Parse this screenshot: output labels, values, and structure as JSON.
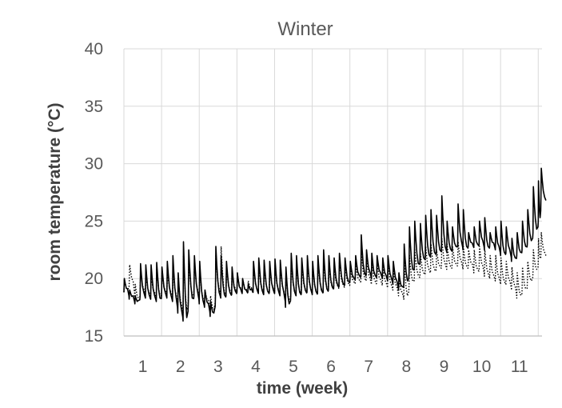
{
  "chart_data": {
    "type": "line",
    "title": "Winter",
    "xlabel": "time (week)",
    "ylabel": "room temperature (°C)",
    "xlim": [
      0.5,
      11.6
    ],
    "ylim": [
      15,
      40
    ],
    "yticks": [
      15,
      20,
      25,
      30,
      35,
      40
    ],
    "xticks": [
      1,
      2,
      3,
      4,
      5,
      6,
      7,
      8,
      9,
      10,
      11
    ],
    "grid": true,
    "legend": "none",
    "series": [
      {
        "style": "solid",
        "color": "#000000",
        "daily_peaks": [
          [
            0.5,
            20.0
          ],
          [
            0.64,
            19.0
          ],
          [
            0.79,
            18.5
          ],
          [
            0.93,
            21.3
          ],
          [
            1.07,
            21.2
          ],
          [
            1.21,
            21.2
          ],
          [
            1.36,
            21.4
          ],
          [
            1.5,
            21.0
          ],
          [
            1.64,
            21.5
          ],
          [
            1.79,
            22.0
          ],
          [
            1.93,
            20.5
          ],
          [
            2.07,
            23.2
          ],
          [
            2.21,
            22.5
          ],
          [
            2.36,
            22.0
          ],
          [
            2.5,
            21.5
          ],
          [
            2.64,
            19.0
          ],
          [
            2.79,
            18.0
          ],
          [
            2.93,
            22.8
          ],
          [
            3.07,
            22.0
          ],
          [
            3.21,
            21.5
          ],
          [
            3.36,
            21.0
          ],
          [
            3.5,
            20.5
          ],
          [
            3.64,
            20.0
          ],
          [
            3.79,
            19.5
          ],
          [
            3.93,
            21.5
          ],
          [
            4.07,
            21.8
          ],
          [
            4.21,
            21.6
          ],
          [
            4.36,
            21.5
          ],
          [
            4.5,
            21.7
          ],
          [
            4.64,
            21.6
          ],
          [
            4.79,
            21.0
          ],
          [
            4.93,
            22.2
          ],
          [
            5.07,
            22.0
          ],
          [
            5.21,
            21.8
          ],
          [
            5.36,
            22.0
          ],
          [
            5.5,
            21.5
          ],
          [
            5.64,
            22.0
          ],
          [
            5.79,
            22.5
          ],
          [
            5.93,
            22.0
          ],
          [
            6.07,
            21.8
          ],
          [
            6.21,
            22.2
          ],
          [
            6.36,
            21.8
          ],
          [
            6.5,
            21.5
          ],
          [
            6.64,
            22.0
          ],
          [
            6.79,
            23.8
          ],
          [
            6.93,
            22.5
          ],
          [
            7.07,
            22.2
          ],
          [
            7.21,
            22.0
          ],
          [
            7.36,
            21.8
          ],
          [
            7.5,
            22.0
          ],
          [
            7.64,
            21.5
          ],
          [
            7.79,
            20.5
          ],
          [
            7.93,
            23.0
          ],
          [
            8.07,
            24.5
          ],
          [
            8.21,
            25.0
          ],
          [
            8.36,
            24.8
          ],
          [
            8.5,
            25.5
          ],
          [
            8.64,
            26.0
          ],
          [
            8.79,
            25.5
          ],
          [
            8.93,
            27.2
          ],
          [
            9.07,
            25.0
          ],
          [
            9.21,
            24.5
          ],
          [
            9.36,
            26.5
          ],
          [
            9.5,
            26.0
          ],
          [
            9.64,
            24.0
          ],
          [
            9.79,
            24.5
          ],
          [
            9.93,
            25.0
          ],
          [
            10.07,
            25.3
          ],
          [
            10.21,
            24.0
          ],
          [
            10.36,
            24.5
          ],
          [
            10.5,
            25.0
          ],
          [
            10.64,
            24.5
          ],
          [
            10.79,
            23.5
          ],
          [
            10.93,
            24.0
          ],
          [
            11.07,
            25.0
          ],
          [
            11.21,
            26.0
          ],
          [
            11.36,
            28.0
          ],
          [
            11.5,
            28.5
          ],
          [
            11.57,
            29.6
          ]
        ],
        "daily_troughs": [
          [
            0.5,
            18.8
          ],
          [
            0.64,
            18.2
          ],
          [
            0.79,
            17.8
          ],
          [
            0.93,
            18.5
          ],
          [
            1.07,
            18.3
          ],
          [
            1.21,
            18.2
          ],
          [
            1.36,
            18.0
          ],
          [
            1.5,
            18.5
          ],
          [
            1.64,
            18.3
          ],
          [
            1.79,
            18.0
          ],
          [
            1.93,
            17.0
          ],
          [
            2.07,
            16.3
          ],
          [
            2.21,
            18.0
          ],
          [
            2.36,
            18.5
          ],
          [
            2.5,
            17.8
          ],
          [
            2.64,
            17.5
          ],
          [
            2.79,
            16.7
          ],
          [
            2.93,
            18.5
          ],
          [
            3.07,
            18.3
          ],
          [
            3.21,
            18.5
          ],
          [
            3.36,
            18.6
          ],
          [
            3.5,
            18.8
          ],
          [
            3.64,
            18.7
          ],
          [
            3.79,
            18.8
          ],
          [
            3.93,
            18.8
          ],
          [
            4.07,
            18.7
          ],
          [
            4.21,
            18.6
          ],
          [
            4.36,
            18.8
          ],
          [
            4.5,
            18.7
          ],
          [
            4.64,
            18.5
          ],
          [
            4.79,
            17.5
          ],
          [
            4.93,
            18.6
          ],
          [
            5.07,
            18.5
          ],
          [
            5.21,
            18.7
          ],
          [
            5.36,
            18.8
          ],
          [
            5.5,
            18.6
          ],
          [
            5.64,
            18.7
          ],
          [
            5.79,
            18.8
          ],
          [
            5.93,
            19.0
          ],
          [
            6.07,
            19.2
          ],
          [
            6.21,
            19.3
          ],
          [
            6.36,
            19.5
          ],
          [
            6.5,
            19.8
          ],
          [
            6.64,
            20.0
          ],
          [
            6.79,
            20.2
          ],
          [
            6.93,
            20.3
          ],
          [
            7.07,
            20.0
          ],
          [
            7.21,
            20.2
          ],
          [
            7.36,
            20.0
          ],
          [
            7.5,
            19.8
          ],
          [
            7.64,
            19.5
          ],
          [
            7.79,
            19.0
          ],
          [
            7.93,
            19.5
          ],
          [
            8.07,
            20.5
          ],
          [
            8.21,
            21.0
          ],
          [
            8.36,
            21.5
          ],
          [
            8.5,
            21.8
          ],
          [
            8.64,
            22.0
          ],
          [
            8.79,
            22.2
          ],
          [
            8.93,
            22.5
          ],
          [
            9.07,
            22.3
          ],
          [
            9.21,
            22.5
          ],
          [
            9.36,
            23.0
          ],
          [
            9.5,
            22.5
          ],
          [
            9.64,
            22.8
          ],
          [
            9.79,
            22.7
          ],
          [
            9.93,
            23.0
          ],
          [
            10.07,
            22.5
          ],
          [
            10.21,
            22.8
          ],
          [
            10.36,
            22.5
          ],
          [
            10.5,
            22.0
          ],
          [
            10.64,
            22.2
          ],
          [
            10.79,
            21.5
          ],
          [
            10.93,
            22.0
          ],
          [
            11.07,
            22.5
          ],
          [
            11.21,
            23.0
          ],
          [
            11.36,
            24.0
          ],
          [
            11.5,
            25.0
          ],
          [
            11.57,
            26.8
          ]
        ]
      },
      {
        "style": "dotted",
        "color": "#000000",
        "daily_peaks": [
          [
            0.5,
            20.0
          ],
          [
            0.64,
            21.2
          ],
          [
            0.79,
            19.5
          ],
          [
            0.93,
            20.8
          ],
          [
            1.07,
            20.5
          ],
          [
            1.21,
            20.3
          ],
          [
            1.36,
            20.8
          ],
          [
            1.5,
            20.5
          ],
          [
            1.64,
            20.8
          ],
          [
            1.79,
            21.0
          ],
          [
            1.93,
            20.0
          ],
          [
            2.07,
            22.0
          ],
          [
            2.21,
            21.5
          ],
          [
            2.36,
            21.5
          ],
          [
            2.5,
            21.0
          ],
          [
            2.64,
            19.0
          ],
          [
            2.79,
            18.5
          ],
          [
            2.93,
            22.0
          ],
          [
            3.07,
            22.8
          ],
          [
            3.21,
            21.0
          ],
          [
            3.36,
            20.8
          ],
          [
            3.5,
            20.5
          ],
          [
            3.64,
            20.0
          ],
          [
            3.79,
            19.8
          ],
          [
            3.93,
            21.0
          ],
          [
            4.07,
            21.2
          ],
          [
            4.21,
            21.0
          ],
          [
            4.36,
            21.0
          ],
          [
            4.5,
            21.2
          ],
          [
            4.64,
            21.0
          ],
          [
            4.79,
            20.5
          ],
          [
            4.93,
            21.5
          ],
          [
            5.07,
            21.2
          ],
          [
            5.21,
            21.0
          ],
          [
            5.36,
            21.2
          ],
          [
            5.5,
            21.0
          ],
          [
            5.64,
            21.3
          ],
          [
            5.79,
            21.5
          ],
          [
            5.93,
            21.3
          ],
          [
            6.07,
            21.2
          ],
          [
            6.21,
            21.5
          ],
          [
            6.36,
            21.2
          ],
          [
            6.5,
            21.0
          ],
          [
            6.64,
            21.3
          ],
          [
            6.79,
            22.5
          ],
          [
            6.93,
            21.8
          ],
          [
            7.07,
            21.5
          ],
          [
            7.21,
            21.3
          ],
          [
            7.36,
            21.0
          ],
          [
            7.5,
            21.2
          ],
          [
            7.64,
            20.8
          ],
          [
            7.79,
            20.0
          ],
          [
            7.93,
            21.5
          ],
          [
            8.07,
            22.0
          ],
          [
            8.21,
            22.5
          ],
          [
            8.36,
            22.2
          ],
          [
            8.5,
            22.8
          ],
          [
            8.64,
            23.0
          ],
          [
            8.79,
            22.5
          ],
          [
            8.93,
            23.5
          ],
          [
            9.07,
            23.0
          ],
          [
            9.21,
            22.8
          ],
          [
            9.36,
            23.2
          ],
          [
            9.5,
            22.8
          ],
          [
            9.64,
            22.5
          ],
          [
            9.79,
            22.5
          ],
          [
            9.93,
            22.8
          ],
          [
            10.07,
            22.5
          ],
          [
            10.21,
            22.0
          ],
          [
            10.36,
            22.0
          ],
          [
            10.5,
            21.8
          ],
          [
            10.64,
            21.5
          ],
          [
            10.79,
            21.0
          ],
          [
            10.93,
            20.5
          ],
          [
            11.07,
            21.0
          ],
          [
            11.21,
            21.5
          ],
          [
            11.36,
            22.5
          ],
          [
            11.5,
            23.5
          ],
          [
            11.57,
            24.0
          ]
        ],
        "daily_troughs": [
          [
            0.5,
            18.8
          ],
          [
            0.64,
            19.5
          ],
          [
            0.79,
            18.0
          ],
          [
            0.93,
            18.8
          ],
          [
            1.07,
            18.5
          ],
          [
            1.21,
            18.5
          ],
          [
            1.36,
            18.3
          ],
          [
            1.5,
            18.7
          ],
          [
            1.64,
            18.5
          ],
          [
            1.79,
            18.3
          ],
          [
            1.93,
            17.5
          ],
          [
            2.07,
            17.0
          ],
          [
            2.21,
            18.3
          ],
          [
            2.36,
            18.7
          ],
          [
            2.5,
            18.0
          ],
          [
            2.64,
            17.8
          ],
          [
            2.79,
            17.0
          ],
          [
            2.93,
            18.8
          ],
          [
            3.07,
            18.5
          ],
          [
            3.21,
            18.7
          ],
          [
            3.36,
            18.8
          ],
          [
            3.5,
            18.9
          ],
          [
            3.64,
            18.8
          ],
          [
            3.79,
            18.9
          ],
          [
            3.93,
            18.9
          ],
          [
            4.07,
            18.8
          ],
          [
            4.21,
            18.7
          ],
          [
            4.36,
            18.9
          ],
          [
            4.5,
            18.8
          ],
          [
            4.64,
            18.6
          ],
          [
            4.79,
            17.8
          ],
          [
            4.93,
            18.7
          ],
          [
            5.07,
            18.6
          ],
          [
            5.21,
            18.8
          ],
          [
            5.36,
            18.9
          ],
          [
            5.5,
            18.7
          ],
          [
            5.64,
            18.8
          ],
          [
            5.79,
            18.9
          ],
          [
            5.93,
            19.0
          ],
          [
            6.07,
            19.1
          ],
          [
            6.21,
            19.2
          ],
          [
            6.36,
            19.3
          ],
          [
            6.5,
            19.5
          ],
          [
            6.64,
            19.6
          ],
          [
            6.79,
            19.8
          ],
          [
            6.93,
            19.8
          ],
          [
            7.07,
            19.5
          ],
          [
            7.21,
            19.6
          ],
          [
            7.36,
            19.4
          ],
          [
            7.5,
            19.2
          ],
          [
            7.64,
            19.0
          ],
          [
            7.79,
            18.5
          ],
          [
            7.93,
            18.2
          ],
          [
            8.07,
            19.5
          ],
          [
            8.21,
            20.0
          ],
          [
            8.36,
            20.2
          ],
          [
            8.5,
            20.5
          ],
          [
            8.64,
            20.5
          ],
          [
            8.79,
            20.8
          ],
          [
            8.93,
            21.0
          ],
          [
            9.07,
            20.8
          ],
          [
            9.21,
            21.0
          ],
          [
            9.36,
            21.2
          ],
          [
            9.5,
            20.8
          ],
          [
            9.64,
            21.0
          ],
          [
            9.79,
            20.5
          ],
          [
            9.93,
            20.8
          ],
          [
            10.07,
            20.2
          ],
          [
            10.21,
            20.0
          ],
          [
            10.36,
            19.8
          ],
          [
            10.5,
            19.5
          ],
          [
            10.64,
            19.5
          ],
          [
            10.79,
            19.0
          ],
          [
            10.93,
            18.3
          ],
          [
            11.07,
            18.8
          ],
          [
            11.21,
            19.5
          ],
          [
            11.36,
            20.5
          ],
          [
            11.5,
            21.5
          ],
          [
            11.57,
            22.0
          ]
        ]
      }
    ]
  }
}
